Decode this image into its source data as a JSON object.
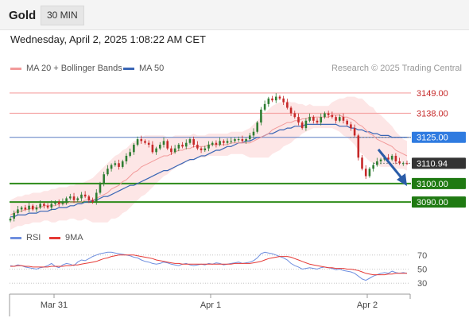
{
  "header": {
    "title": "Gold",
    "timeframe": "30 MIN"
  },
  "datetime": "Wednesday, April 2, 2025 1:08:22 AM CET",
  "legend": {
    "ma20_label": "MA 20 + Bollinger Bands",
    "ma50_label": "MA 50",
    "rsi_label": "RSI",
    "rsi_ma_label": "9MA"
  },
  "credit": "Research © 2025 Trading Central",
  "colors": {
    "ma20": "#f29a9a",
    "ma50": "#3a66b5",
    "bollinger_fill": "#fde2e2",
    "resistance": "#f5a3a3",
    "support": "#2e8b1a",
    "pivot": "#5b7fc4",
    "candle_up": "#2e7d32",
    "candle_down": "#c62828",
    "rsi": "#6f8fdf",
    "rsi_ma": "#e53935",
    "arrow": "#2a5ca8"
  },
  "chart_data": [
    {
      "type": "candlestick",
      "ylim": [
        3078,
        3158
      ],
      "x_ticks": [
        "Mar 31",
        "Apr 1",
        "Apr 2"
      ],
      "levels": [
        {
          "value": 3149.0,
          "label": "3149.00",
          "kind": "resistance"
        },
        {
          "value": 3138.0,
          "label": "3138.00",
          "kind": "resistance"
        },
        {
          "value": 3125.0,
          "label": "3125.00",
          "kind": "pivot"
        },
        {
          "value": 3110.94,
          "label": "3110.94",
          "kind": "last"
        },
        {
          "value": 3100.0,
          "label": "3100.00",
          "kind": "support"
        },
        {
          "value": 3090.0,
          "label": "3090.00",
          "kind": "support"
        }
      ],
      "close": [
        3081,
        3084,
        3086,
        3087,
        3086,
        3088,
        3086,
        3087,
        3089,
        3088,
        3087,
        3089,
        3090,
        3089,
        3090,
        3092,
        3093,
        3091,
        3092,
        3094,
        3093,
        3091,
        3090,
        3095,
        3100,
        3105,
        3108,
        3110,
        3111,
        3109,
        3112,
        3115,
        3117,
        3121,
        3124,
        3123,
        3122,
        3121,
        3117,
        3119,
        3121,
        3123,
        3119,
        3117,
        3119,
        3121,
        3120,
        3122,
        3124,
        3121,
        3119,
        3118,
        3119,
        3121,
        3122,
        3121,
        3123,
        3122,
        3123,
        3123,
        3124,
        3124,
        3123,
        3124,
        3126,
        3128,
        3133,
        3140,
        3143,
        3146,
        3145,
        3147,
        3146,
        3144,
        3141,
        3138,
        3136,
        3133,
        3130,
        3134,
        3136,
        3134,
        3133,
        3136,
        3138,
        3137,
        3136,
        3134,
        3136,
        3134,
        3132,
        3130,
        3126,
        3114,
        3108,
        3104,
        3108,
        3110,
        3112,
        3113,
        3114,
        3113,
        3115,
        3112,
        3111,
        3111,
        3110.94
      ],
      "ma20": [
        3083,
        3084,
        3085,
        3085,
        3086,
        3086,
        3087,
        3087,
        3087,
        3088,
        3088,
        3088,
        3088,
        3089,
        3089,
        3089,
        3090,
        3090,
        3090,
        3090,
        3091,
        3091,
        3091,
        3092,
        3093,
        3094,
        3095,
        3097,
        3098,
        3099,
        3101,
        3102,
        3104,
        3106,
        3107,
        3109,
        3110,
        3111,
        3112,
        3113,
        3114,
        3115,
        3115,
        3116,
        3117,
        3118,
        3118,
        3119,
        3119,
        3120,
        3120,
        3120,
        3120,
        3121,
        3121,
        3121,
        3121,
        3121,
        3121,
        3122,
        3122,
        3122,
        3122,
        3122,
        3122,
        3123,
        3124,
        3125,
        3126,
        3127,
        3129,
        3130,
        3131,
        3132,
        3133,
        3133,
        3134,
        3134,
        3135,
        3135,
        3136,
        3136,
        3136,
        3136,
        3136,
        3136,
        3137,
        3137,
        3137,
        3136,
        3136,
        3135,
        3134,
        3132,
        3131,
        3129,
        3127,
        3126,
        3124,
        3123,
        3122,
        3121,
        3120,
        3118,
        3117,
        3116,
        3115
      ],
      "ma50": [
        3082,
        3082,
        3083,
        3083,
        3083,
        3084,
        3084,
        3084,
        3085,
        3085,
        3085,
        3086,
        3086,
        3087,
        3087,
        3087,
        3088,
        3088,
        3089,
        3089,
        3090,
        3090,
        3091,
        3091,
        3092,
        3093,
        3093,
        3094,
        3095,
        3096,
        3097,
        3098,
        3099,
        3099,
        3100,
        3101,
        3102,
        3103,
        3104,
        3105,
        3106,
        3107,
        3107,
        3108,
        3109,
        3110,
        3111,
        3112,
        3113,
        3113,
        3114,
        3115,
        3115,
        3116,
        3117,
        3118,
        3118,
        3119,
        3120,
        3120,
        3121,
        3122,
        3122,
        3123,
        3123,
        3124,
        3125,
        3125,
        3126,
        3127,
        3127,
        3128,
        3129,
        3129,
        3130,
        3130,
        3131,
        3131,
        3131,
        3132,
        3132,
        3132,
        3132,
        3132,
        3132,
        3132,
        3132,
        3132,
        3131,
        3131,
        3131,
        3130,
        3130,
        3129,
        3129,
        3128,
        3128,
        3127,
        3127,
        3126,
        3126,
        3126,
        3125,
        3125,
        3125,
        3125,
        3125
      ],
      "bollinger_width": [
        8,
        8,
        8,
        8,
        8,
        8,
        8,
        8,
        8,
        8,
        8,
        9,
        9,
        9,
        9,
        9,
        9,
        9,
        10,
        10,
        10,
        11,
        12,
        13,
        14,
        15,
        16,
        16,
        17,
        17,
        17,
        17,
        17,
        17,
        16,
        16,
        16,
        15,
        14,
        13,
        12,
        11,
        10,
        9,
        9,
        8,
        8,
        7,
        7,
        7,
        6,
        6,
        6,
        6,
        6,
        6,
        6,
        6,
        6,
        6,
        6,
        6,
        6,
        7,
        8,
        9,
        10,
        11,
        12,
        13,
        13,
        13,
        13,
        12,
        12,
        11,
        10,
        9,
        8,
        7,
        7,
        6,
        6,
        6,
        6,
        6,
        7,
        8,
        9,
        10,
        11,
        12,
        13,
        14,
        15,
        15,
        15,
        15,
        14,
        14,
        13,
        12,
        11,
        10,
        9,
        8,
        8
      ]
    },
    {
      "type": "line",
      "ylim": [
        20,
        80
      ],
      "y_ticks": [
        "70",
        "50",
        "30"
      ],
      "rsi": [
        55,
        54,
        56,
        55,
        53,
        52,
        51,
        50,
        52,
        53,
        55,
        58,
        54,
        52,
        56,
        58,
        57,
        55,
        60,
        63,
        62,
        65,
        68,
        70,
        72,
        73,
        74,
        74,
        73,
        72,
        71,
        70,
        69,
        67,
        66,
        63,
        61,
        60,
        58,
        57,
        58,
        60,
        59,
        57,
        56,
        55,
        57,
        58,
        56,
        55,
        56,
        57,
        56,
        58,
        57,
        59,
        58,
        56,
        57,
        58,
        59,
        60,
        58,
        59,
        60,
        62,
        66,
        72,
        74,
        73,
        72,
        70,
        68,
        66,
        63,
        58,
        55,
        53,
        50,
        51,
        52,
        51,
        50,
        52,
        53,
        52,
        51,
        49,
        50,
        48,
        47,
        46,
        44,
        40,
        36,
        34,
        37,
        40,
        42,
        44,
        45,
        44,
        47,
        45,
        44,
        45,
        44
      ],
      "rsi_ma": [
        54,
        54,
        55,
        55,
        54,
        54,
        53,
        53,
        53,
        53,
        53,
        54,
        54,
        54,
        54,
        55,
        55,
        56,
        56,
        57,
        58,
        59,
        60,
        61,
        63,
        65,
        66,
        68,
        69,
        70,
        70,
        70,
        70,
        70,
        69,
        68,
        67,
        66,
        65,
        63,
        62,
        61,
        60,
        59,
        58,
        58,
        57,
        57,
        57,
        57,
        57,
        57,
        57,
        57,
        57,
        57,
        57,
        57,
        57,
        57,
        58,
        58,
        58,
        58,
        58,
        59,
        60,
        61,
        63,
        65,
        66,
        67,
        68,
        68,
        68,
        67,
        65,
        63,
        61,
        59,
        57,
        56,
        55,
        54,
        53,
        52,
        52,
        51,
        51,
        51,
        50,
        50,
        49,
        48,
        46,
        44,
        43,
        42,
        42,
        42,
        42,
        43,
        43,
        44,
        44,
        44,
        44
      ]
    }
  ]
}
